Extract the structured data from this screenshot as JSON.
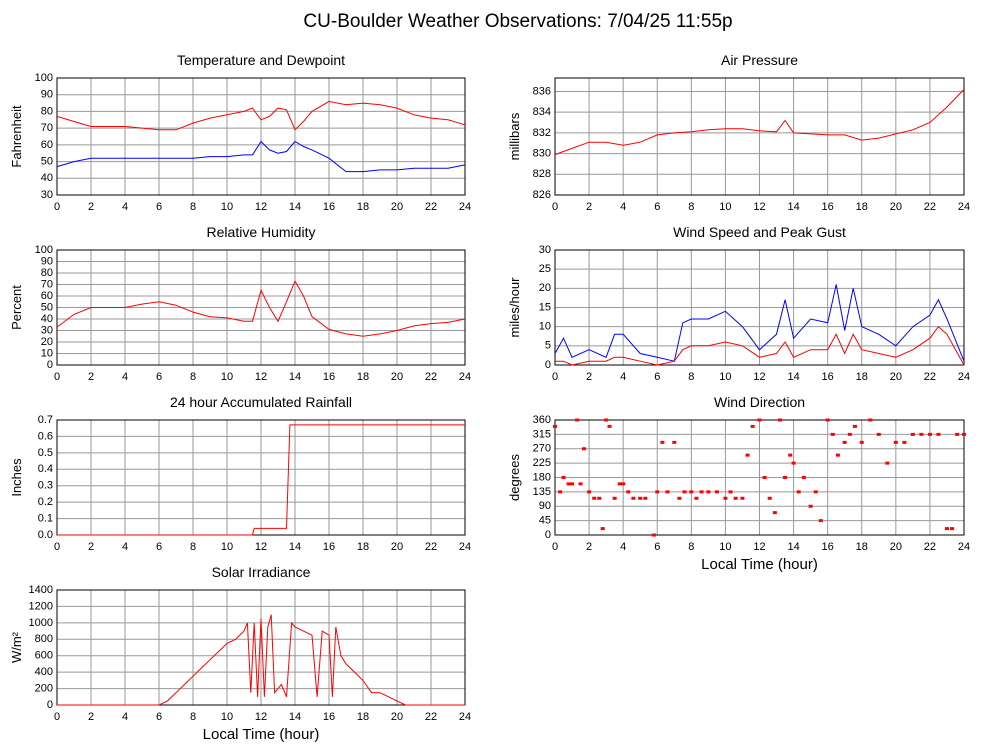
{
  "title": "CU-Boulder Weather Observations: 7/04/25 11:55p",
  "chart_data": [
    {
      "type": "line",
      "title": "Temperature and Dewpoint",
      "ylabel": "Fahrenheit",
      "x": [
        0,
        1,
        2,
        3,
        4,
        5,
        6,
        7,
        8,
        9,
        10,
        11,
        11.5,
        12,
        12.5,
        13,
        13.5,
        14,
        14.5,
        15,
        16,
        17,
        18,
        19,
        20,
        21,
        22,
        23,
        24
      ],
      "series": [
        {
          "color": "#ff0000",
          "values": [
            77,
            74,
            71,
            71,
            71,
            70,
            69,
            69,
            73,
            76,
            78,
            80,
            82,
            75,
            77,
            82,
            81,
            69,
            74,
            80,
            86,
            84,
            85,
            84,
            82,
            78,
            76,
            75,
            72
          ]
        },
        {
          "color": "#0000ff",
          "values": [
            47,
            50,
            52,
            52,
            52,
            52,
            52,
            52,
            52,
            53,
            53,
            54,
            54,
            62,
            57,
            55,
            56,
            62,
            59,
            57,
            52,
            44,
            44,
            45,
            45,
            46,
            46,
            46,
            48
          ]
        }
      ],
      "xlim": [
        0,
        24
      ],
      "xticks": [
        0,
        2,
        4,
        6,
        8,
        10,
        12,
        14,
        16,
        18,
        20,
        22,
        24
      ],
      "ylim": [
        30,
        100
      ],
      "yticks": [
        30,
        40,
        50,
        60,
        70,
        80,
        90,
        100
      ],
      "grid": true
    },
    {
      "type": "line",
      "title": "Air Pressure",
      "ylabel": "millibars",
      "x": [
        0,
        1,
        2,
        3,
        4,
        5,
        6,
        7,
        8,
        9,
        10,
        11,
        12,
        13,
        13.5,
        14,
        15,
        16,
        17,
        18,
        19,
        20,
        21,
        22,
        23,
        24
      ],
      "series": [
        {
          "color": "#ff0000",
          "values": [
            829.9,
            830.5,
            831.1,
            831.1,
            830.8,
            831.1,
            831.8,
            832.0,
            832.1,
            832.3,
            832.4,
            832.4,
            832.2,
            832.1,
            833.2,
            832.0,
            831.9,
            831.8,
            831.8,
            831.3,
            831.5,
            831.9,
            832.3,
            833.0,
            834.5,
            836.2
          ]
        }
      ],
      "xlim": [
        0,
        24
      ],
      "xticks": [
        0,
        2,
        4,
        6,
        8,
        10,
        12,
        14,
        16,
        18,
        20,
        22,
        24
      ],
      "ylim": [
        826,
        837.3
      ],
      "yticks": [
        826,
        828,
        830,
        832,
        834,
        836
      ],
      "grid": true
    },
    {
      "type": "line",
      "title": "Relative Humidity",
      "ylabel": "Percent",
      "x": [
        0,
        1,
        2,
        3,
        4,
        5,
        6,
        7,
        8,
        9,
        10,
        11,
        11.5,
        12,
        12.5,
        13,
        13.5,
        14,
        14.5,
        15,
        16,
        17,
        18,
        19,
        20,
        21,
        22,
        23,
        24
      ],
      "series": [
        {
          "color": "#ff0000",
          "values": [
            33,
            44,
            50,
            50,
            50,
            53,
            55,
            52,
            46,
            42,
            41,
            38,
            38,
            65,
            50,
            38,
            55,
            73,
            60,
            42,
            31,
            27,
            25,
            27,
            30,
            34,
            36,
            37,
            40
          ]
        }
      ],
      "xlim": [
        0,
        24
      ],
      "xticks": [
        0,
        2,
        4,
        6,
        8,
        10,
        12,
        14,
        16,
        18,
        20,
        22,
        24
      ],
      "ylim": [
        0,
        100
      ],
      "yticks": [
        0,
        10,
        20,
        30,
        40,
        50,
        60,
        70,
        80,
        90,
        100
      ],
      "grid": true
    },
    {
      "type": "line",
      "title": "Wind Speed and Peak Gust",
      "ylabel": "miles/hour",
      "x": [
        0,
        0.5,
        1,
        2,
        3,
        3.5,
        4,
        5,
        6,
        7,
        7.5,
        8,
        9,
        10,
        11,
        12,
        13,
        13.5,
        14,
        15,
        16,
        16.5,
        17,
        17.5,
        18,
        19,
        20,
        21,
        22,
        22.5,
        23,
        24
      ],
      "series": [
        {
          "color": "#0000ff",
          "values": [
            3,
            7,
            2,
            4,
            2,
            8,
            8,
            3,
            2,
            1,
            11,
            12,
            12,
            14,
            10,
            4,
            8,
            17,
            7,
            12,
            11,
            21,
            9,
            20,
            10,
            8,
            5,
            10,
            13,
            17,
            12,
            1
          ]
        },
        {
          "color": "#ff0000",
          "values": [
            1,
            1,
            0,
            1,
            1,
            2,
            2,
            1,
            0,
            1,
            4,
            5,
            5,
            6,
            5,
            2,
            3,
            6,
            2,
            4,
            4,
            8,
            3,
            8,
            4,
            3,
            2,
            4,
            7,
            10,
            8,
            0
          ]
        }
      ],
      "xlim": [
        0,
        24
      ],
      "xticks": [
        0,
        2,
        4,
        6,
        8,
        10,
        12,
        14,
        16,
        18,
        20,
        22,
        24
      ],
      "ylim": [
        0,
        30
      ],
      "yticks": [
        0,
        5,
        10,
        15,
        20,
        25,
        30
      ],
      "grid": true
    },
    {
      "type": "line",
      "title": "24 hour Accumulated Rainfall",
      "ylabel": "Inches",
      "x": [
        0,
        11.5,
        11.6,
        13.5,
        13.7,
        24
      ],
      "series": [
        {
          "color": "#ff0000",
          "values": [
            0,
            0,
            0.04,
            0.04,
            0.67,
            0.67
          ]
        }
      ],
      "xlim": [
        0,
        24
      ],
      "xticks": [
        0,
        2,
        4,
        6,
        8,
        10,
        12,
        14,
        16,
        18,
        20,
        22,
        24
      ],
      "ylim": [
        0,
        0.7
      ],
      "yticks": [
        {
          "value": 0,
          "label": "0.0"
        },
        0.1,
        0.2,
        0.3,
        0.4,
        0.5,
        0.6,
        0.7
      ],
      "grid": true
    },
    {
      "type": "scatter",
      "title": "Wind Direction",
      "ylabel": "degrees",
      "xlabel": "Local Time (hour)",
      "x": [
        0,
        0.3,
        0.5,
        0.8,
        1,
        1.3,
        1.5,
        1.7,
        2,
        2.3,
        2.6,
        2.8,
        3,
        3.2,
        3.5,
        3.8,
        4,
        4.3,
        4.6,
        5,
        5.3,
        5.8,
        6,
        6.3,
        6.6,
        7,
        7.3,
        7.6,
        8,
        8.3,
        8.6,
        9,
        9.5,
        10,
        10.3,
        10.6,
        11,
        11.3,
        11.6,
        12,
        12.3,
        12.6,
        12.9,
        13.2,
        13.5,
        13.8,
        14,
        14.3,
        14.6,
        15,
        15.3,
        15.6,
        16,
        16.3,
        16.6,
        17,
        17.3,
        17.6,
        18,
        18.5,
        19,
        19.5,
        20,
        20.5,
        21,
        21.5,
        22,
        22.5,
        23,
        23.3,
        23.6,
        24
      ],
      "values": [
        340,
        135,
        180,
        160,
        160,
        360,
        160,
        270,
        135,
        115,
        115,
        20,
        360,
        340,
        115,
        160,
        160,
        135,
        115,
        115,
        115,
        0,
        135,
        290,
        135,
        290,
        115,
        135,
        135,
        115,
        135,
        135,
        135,
        115,
        135,
        115,
        115,
        250,
        340,
        360,
        180,
        115,
        70,
        360,
        180,
        250,
        225,
        135,
        180,
        90,
        135,
        45,
        360,
        315,
        250,
        290,
        315,
        340,
        290,
        360,
        315,
        225,
        290,
        290,
        315,
        315,
        315,
        315,
        20,
        20,
        315,
        315
      ],
      "color": "#ff0000",
      "xlim": [
        0,
        24
      ],
      "xticks": [
        0,
        2,
        4,
        6,
        8,
        10,
        12,
        14,
        16,
        18,
        20,
        22,
        24
      ],
      "ylim": [
        0,
        360
      ],
      "yticks": [
        0,
        45,
        90,
        135,
        180,
        225,
        270,
        315,
        360
      ],
      "grid": true
    },
    {
      "type": "line",
      "title": "Solar Irradiance",
      "ylabel": "W/m²",
      "xlabel": "Local Time (hour)",
      "x": [
        0,
        6,
        6.5,
        7,
        7.5,
        8,
        8.5,
        9,
        9.5,
        10,
        10.5,
        11,
        11.2,
        11.4,
        11.6,
        11.8,
        12,
        12.2,
        12.4,
        12.6,
        12.8,
        13,
        13.2,
        13.5,
        13.8,
        14,
        14.5,
        15,
        15.3,
        15.6,
        16,
        16.2,
        16.4,
        16.7,
        17,
        17.5,
        18,
        18.5,
        19,
        19.5,
        20,
        20.5,
        24
      ],
      "series": [
        {
          "color": "#ff0000",
          "values": [
            0,
            0,
            50,
            150,
            250,
            350,
            450,
            550,
            650,
            750,
            800,
            900,
            1000,
            150,
            1000,
            100,
            1050,
            100,
            950,
            1100,
            150,
            200,
            250,
            100,
            1000,
            950,
            900,
            850,
            100,
            900,
            850,
            100,
            950,
            600,
            500,
            400,
            300,
            150,
            150,
            100,
            50,
            0,
            0
          ]
        }
      ],
      "xlim": [
        0,
        24
      ],
      "xticks": [
        0,
        2,
        4,
        6,
        8,
        10,
        12,
        14,
        16,
        18,
        20,
        22,
        24
      ],
      "ylim": [
        0,
        1400
      ],
      "yticks": [
        0,
        200,
        400,
        600,
        800,
        1000,
        1200,
        1400
      ],
      "grid": true
    }
  ]
}
